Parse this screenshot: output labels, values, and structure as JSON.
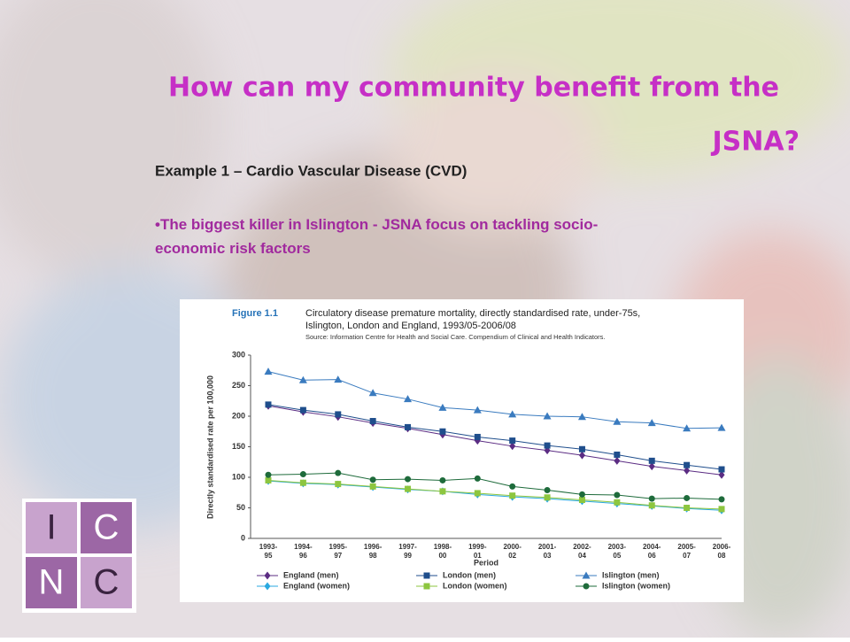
{
  "slide": {
    "title_line1": "How can my community benefit from the",
    "title_line2": "JSNA?",
    "subtitle": "Example 1 – Cardio Vascular Disease (CVD)",
    "bullet": "•The biggest killer in Islington  - JSNA focus on tackling socio-economic risk factors"
  },
  "logo": {
    "letters": [
      "I",
      "C",
      "N",
      "C"
    ]
  },
  "chart_data": {
    "type": "line",
    "figure_label": "Figure 1.1",
    "title": "Circulatory disease premature mortality, directly standardised rate, under-75s, Islington, London and England, 1993/05-2006/08",
    "source": "Source: Information Centre for Health and Social Care. Compendium of Clinical and Health Indicators.",
    "y_label": "Directly standardised rate per 100,000",
    "x_label": "Period",
    "categories": [
      "1993-95",
      "1994-96",
      "1995-97",
      "1996-98",
      "1997-99",
      "1998-00",
      "1999-01",
      "2000-02",
      "2001-03",
      "2002-04",
      "2003-05",
      "2004-06",
      "2005-07",
      "2006-08"
    ],
    "ylim": [
      0,
      300
    ],
    "yticks": [
      0,
      50,
      100,
      150,
      200,
      250,
      300
    ],
    "grid": false,
    "series": [
      {
        "name": "England (men)",
        "color": "#5b2c83",
        "marker": "diamond",
        "values": [
          217,
          207,
          199,
          189,
          180,
          170,
          160,
          151,
          144,
          136,
          127,
          118,
          111,
          104
        ]
      },
      {
        "name": "London (men)",
        "color": "#1f4e8c",
        "marker": "square",
        "values": [
          219,
          210,
          203,
          192,
          182,
          175,
          166,
          160,
          152,
          146,
          137,
          127,
          120,
          113
        ]
      },
      {
        "name": "Islington (men)",
        "color": "#3a7bbf",
        "marker": "triangle",
        "values": [
          273,
          259,
          260,
          238,
          228,
          214,
          210,
          203,
          200,
          199,
          191,
          189,
          180,
          181
        ]
      },
      {
        "name": "England (women)",
        "color": "#29a9e0",
        "marker": "diamond",
        "values": [
          94,
          90,
          88,
          84,
          80,
          77,
          72,
          68,
          65,
          61,
          57,
          53,
          49,
          46
        ]
      },
      {
        "name": "London (women)",
        "color": "#8dc63f",
        "marker": "square",
        "values": [
          95,
          91,
          89,
          85,
          81,
          77,
          74,
          70,
          67,
          63,
          59,
          54,
          50,
          48
        ]
      },
      {
        "name": "Islington (women)",
        "color": "#1e6b3b",
        "marker": "circle",
        "values": [
          104,
          105,
          107,
          96,
          97,
          95,
          98,
          85,
          79,
          72,
          71,
          65,
          66,
          64
        ]
      }
    ]
  }
}
